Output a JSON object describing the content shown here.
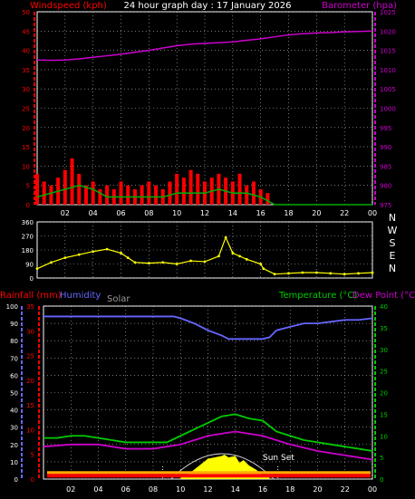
{
  "header": {
    "windspeed_label": "Windspeed (kph)",
    "title": "24 hour graph day : 17 January 2026",
    "barometer_label": "Barometer (hpa)"
  },
  "labels": {
    "rainfall": "Rainfall (mm)",
    "humidity": "Humidity",
    "solar": "Solar",
    "temperature": "Temperature (°C)",
    "dew_point": "Dew Point (°C)",
    "sun_set": "Sun Set"
  },
  "colors": {
    "wind": "#ff0000",
    "gust": "#ff0000",
    "avg": "#00aa00",
    "barometer": "#cc00cc",
    "direction": "#ffff00",
    "humidity": "#6666ff",
    "temperature": "#00cc00",
    "dew_point": "#cc00cc",
    "rain": "#ff0000",
    "solar": "#ffff00",
    "grid": "#c0c0c0",
    "left_axis": "#ff0000",
    "right_axis": "#cc00cc",
    "temp_axis": "#00cc00",
    "hum_axis": "#6666ff"
  },
  "chart_data": [
    {
      "type": "line",
      "name": "wind-barometer",
      "xlabel": "",
      "x_tick_labels": [
        "02",
        "04",
        "06",
        "08",
        "10",
        "12",
        "14",
        "16",
        "18",
        "20",
        "22",
        "00"
      ],
      "x_tick_hours": [
        2,
        4,
        6,
        8,
        10,
        12,
        14,
        16,
        18,
        20,
        22,
        24
      ],
      "xlim": [
        0,
        24
      ],
      "y_left": {
        "label": "Windspeed (kph)",
        "lim": [
          0,
          50
        ],
        "ticks": [
          0,
          5,
          10,
          15,
          20,
          25,
          30,
          35,
          40,
          45,
          50
        ]
      },
      "y_right": {
        "label": "Barometer (hpa)",
        "lim": [
          975,
          1025
        ],
        "ticks": [
          975,
          980,
          985,
          990,
          995,
          1000,
          1005,
          1010,
          1015,
          1020,
          1025
        ]
      },
      "series": [
        {
          "name": "Windspeed (kph)",
          "axis": "left",
          "x": [
            0,
            0.5,
            1,
            1.5,
            2,
            2.5,
            3,
            3.5,
            4,
            4.5,
            5,
            5.5,
            6,
            6.5,
            7,
            7.5,
            8,
            8.5,
            9,
            9.5,
            10,
            10.5,
            11,
            11.5,
            12,
            12.5,
            13,
            13.5,
            14,
            14.5,
            15,
            15.5,
            16,
            16.5,
            17,
            18,
            19,
            20,
            21,
            22,
            23,
            24
          ],
          "values": [
            8,
            6,
            5,
            7,
            9,
            12,
            8,
            5,
            6,
            4,
            5,
            4,
            6,
            5,
            4,
            5,
            6,
            5,
            4,
            6,
            8,
            7,
            9,
            8,
            6,
            7,
            8,
            7,
            6,
            8,
            5,
            6,
            4,
            3,
            0,
            0,
            0,
            0,
            0,
            0,
            0,
            0
          ]
        },
        {
          "name": "Average",
          "axis": "left",
          "x": [
            0,
            1,
            2,
            3,
            4,
            5,
            6,
            7,
            8,
            9,
            10,
            11,
            12,
            13,
            14,
            15,
            16,
            17,
            18,
            24
          ],
          "values": [
            2,
            3,
            4,
            5,
            4,
            2,
            2,
            2,
            2,
            2,
            3,
            3,
            3,
            4,
            3,
            3,
            2,
            0,
            0,
            0
          ]
        },
        {
          "name": "Barometer (hpa)",
          "axis": "right",
          "x": [
            0,
            1,
            2,
            3,
            4,
            5,
            6,
            7,
            8,
            9,
            10,
            11,
            12,
            13,
            14,
            15,
            16,
            17,
            18,
            19,
            20,
            21,
            22,
            23,
            24
          ],
          "values": [
            1012.5,
            1012.4,
            1012.5,
            1012.8,
            1013.2,
            1013.6,
            1014.0,
            1014.5,
            1015.0,
            1015.6,
            1016.2,
            1016.6,
            1016.8,
            1017.0,
            1017.2,
            1017.6,
            1018.0,
            1018.5,
            1019.0,
            1019.3,
            1019.5,
            1019.6,
            1019.8,
            1019.9,
            1020.0
          ]
        }
      ]
    },
    {
      "type": "scatter",
      "name": "wind-direction",
      "xlim": [
        0,
        24
      ],
      "y_left": {
        "lim": [
          0,
          360
        ],
        "ticks": [
          0,
          90,
          180,
          270,
          360
        ]
      },
      "y_right_labels": [
        "N",
        "W",
        "S",
        "E",
        "N"
      ],
      "series": [
        {
          "name": "Direction",
          "x": [
            0,
            1,
            2,
            3,
            4,
            5,
            6,
            6.5,
            7,
            8,
            9,
            10,
            11,
            12,
            13,
            13.5,
            14,
            14.5,
            15,
            16,
            16.2,
            17,
            18,
            19,
            20,
            21,
            22,
            23,
            24
          ],
          "values": [
            60,
            100,
            130,
            150,
            170,
            185,
            160,
            130,
            100,
            95,
            100,
            90,
            110,
            105,
            140,
            260,
            160,
            140,
            120,
            90,
            60,
            25,
            30,
            35,
            35,
            30,
            25,
            30,
            35
          ]
        }
      ]
    },
    {
      "type": "line",
      "name": "temperature-humidity-rain-solar",
      "xlim": [
        0,
        24
      ],
      "y_left_rain": {
        "label": "Rainfall (mm)",
        "lim": [
          0,
          35
        ],
        "ticks": [
          0,
          5,
          10,
          15,
          20,
          25,
          30,
          35
        ]
      },
      "y_left_humidity": {
        "label": "Humidity",
        "lim": [
          0,
          100
        ],
        "ticks": [
          0,
          10,
          20,
          30,
          40,
          50,
          60,
          70,
          80,
          90,
          100
        ]
      },
      "y_right": {
        "label": "Temperature (°C)",
        "lim": [
          0,
          40
        ],
        "ticks": [
          0,
          5,
          10,
          15,
          20,
          25,
          30,
          35,
          40
        ]
      },
      "series": [
        {
          "name": "Humidity",
          "axis": "humidity",
          "x": [
            0,
            2,
            4,
            6,
            8,
            9,
            9.5,
            10,
            11,
            12,
            13,
            13.5,
            14,
            15,
            16,
            16.5,
            17,
            18,
            19,
            20,
            21,
            22,
            23,
            24
          ],
          "values": [
            94,
            94,
            94,
            94,
            94,
            94,
            94,
            93,
            90,
            86,
            83,
            81,
            81,
            81,
            81,
            82,
            86,
            88,
            90,
            90,
            91,
            92,
            92,
            93
          ]
        },
        {
          "name": "Temperature (°C)",
          "axis": "temp",
          "x": [
            0,
            1,
            2,
            3,
            4,
            5,
            6,
            7,
            8,
            9,
            10,
            11,
            12,
            13,
            14,
            15,
            16,
            17,
            18,
            19,
            20,
            21,
            22,
            23,
            24
          ],
          "values": [
            9.5,
            9.5,
            10,
            10,
            9.5,
            9,
            8.5,
            8.5,
            8.5,
            8.5,
            10,
            11.5,
            13,
            14.5,
            15,
            14,
            13.5,
            11,
            10,
            9,
            8.5,
            8,
            7.5,
            7,
            6.5
          ]
        },
        {
          "name": "Dew Point (°C)",
          "axis": "temp",
          "x": [
            0,
            2,
            4,
            6,
            8,
            10,
            11,
            12,
            13,
            14,
            15,
            16,
            17,
            18,
            20,
            22,
            24
          ],
          "values": [
            7.5,
            8,
            8,
            7,
            7,
            8,
            9,
            10,
            10.5,
            11,
            10.5,
            10,
            9,
            8,
            6.5,
            5.5,
            4.5
          ]
        },
        {
          "name": "Rainfall (mm)",
          "axis": "rain",
          "x": [
            0,
            24
          ],
          "values": [
            0.5,
            0.5
          ]
        },
        {
          "name": "Solar",
          "axis": "solar",
          "x": [
            10,
            10.5,
            11,
            11.5,
            12,
            12.5,
            13,
            13.2,
            13.5,
            14,
            14.3,
            14.6,
            15,
            15.5,
            16,
            16.5
          ],
          "values": [
            0.05,
            0.15,
            0.35,
            0.55,
            0.75,
            0.8,
            0.85,
            0.9,
            0.8,
            0.85,
            0.6,
            0.7,
            0.5,
            0.35,
            0.15,
            0.05
          ]
        }
      ]
    }
  ]
}
